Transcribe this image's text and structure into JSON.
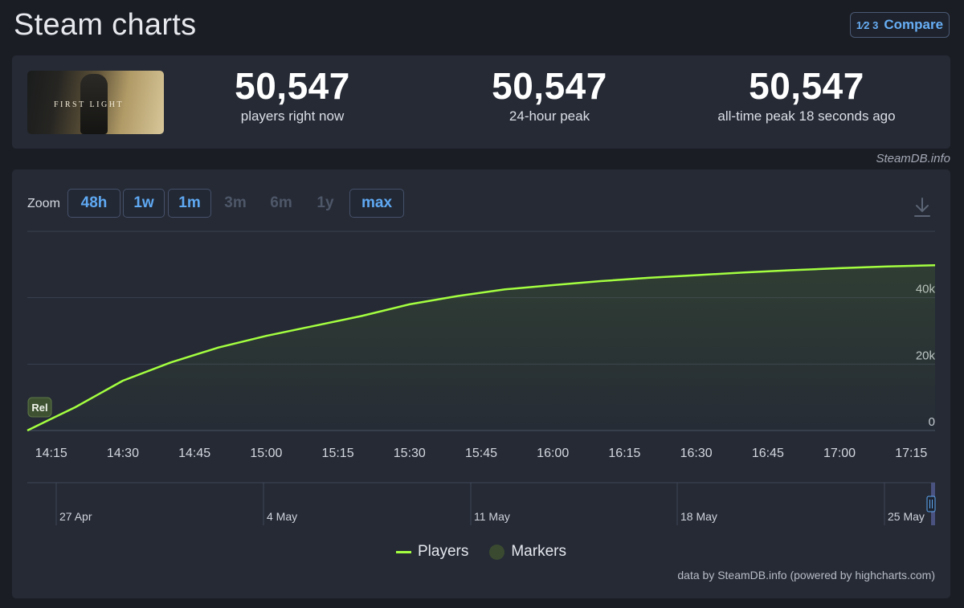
{
  "page": {
    "title": "Steam charts"
  },
  "compare": {
    "icon_text": "1⁄2 3",
    "label": "Compare"
  },
  "game": {
    "thumbnail_text": "FIRST LIGHT"
  },
  "stats": [
    {
      "value": "50,547",
      "label": "players right now"
    },
    {
      "value": "50,547",
      "label": "24-hour peak"
    },
    {
      "value": "50,547",
      "label": "all-time peak 18 seconds ago"
    }
  ],
  "credit": "SteamDB.info",
  "zoom": {
    "label": "Zoom",
    "buttons": [
      {
        "label": "48h",
        "enabled": true
      },
      {
        "label": "1w",
        "enabled": true
      },
      {
        "label": "1m",
        "enabled": true
      },
      {
        "label": "3m",
        "enabled": false
      },
      {
        "label": "6m",
        "enabled": false
      },
      {
        "label": "1y",
        "enabled": false
      },
      {
        "label": "max",
        "enabled": true
      }
    ]
  },
  "chart_data": {
    "type": "line",
    "series": [
      {
        "name": "Players",
        "color": "#a4ff40",
        "points": [
          [
            "14:10",
            0
          ],
          [
            "14:15",
            3500
          ],
          [
            "14:20",
            7000
          ],
          [
            "14:30",
            15000
          ],
          [
            "14:40",
            20500
          ],
          [
            "14:50",
            25000
          ],
          [
            "15:00",
            28500
          ],
          [
            "15:10",
            31500
          ],
          [
            "15:20",
            34500
          ],
          [
            "15:30",
            38000
          ],
          [
            "15:40",
            40500
          ],
          [
            "15:50",
            42500
          ],
          [
            "16:00",
            43800
          ],
          [
            "16:10",
            45000
          ],
          [
            "16:20",
            46000
          ],
          [
            "16:30",
            46800
          ],
          [
            "16:40",
            47600
          ],
          [
            "16:50",
            48300
          ],
          [
            "17:00",
            48900
          ],
          [
            "17:10",
            49400
          ],
          [
            "17:20",
            49800
          ]
        ]
      }
    ],
    "marker": {
      "label": "Rel",
      "time": "14:10"
    },
    "x_ticks": [
      "14:15",
      "14:30",
      "14:45",
      "15:00",
      "15:15",
      "15:30",
      "15:45",
      "16:00",
      "16:15",
      "16:30",
      "16:45",
      "17:00",
      "17:15"
    ],
    "x_range": [
      "14:10",
      "17:20"
    ],
    "y_ticks": [
      0,
      20000,
      40000
    ],
    "y_tick_labels": [
      "0",
      "20k",
      "40k"
    ],
    "ylim": [
      0,
      60000
    ],
    "grid": true,
    "navigator": {
      "labels": [
        "27 Apr",
        "4 May",
        "11 May",
        "18 May",
        "25 May"
      ]
    },
    "legend": [
      "Players",
      "Markers"
    ],
    "legend_position": "bottom-center"
  },
  "attribution": "data by SteamDB.info (powered by highcharts.com)"
}
